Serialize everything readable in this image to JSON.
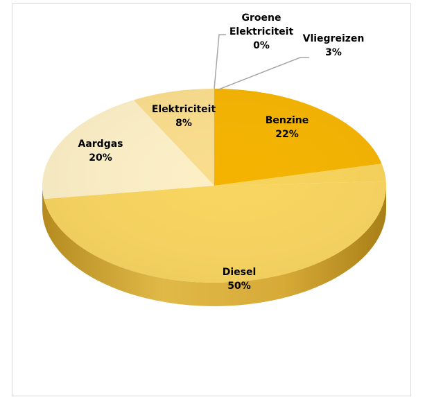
{
  "chart_data": {
    "type": "pie",
    "style": "3d-exploded-free",
    "title": "",
    "start_angle_deg": 0,
    "direction": "clockwise",
    "slices": [
      {
        "label": [
          "Benzine"
        ],
        "value": 22,
        "value_label": "22%",
        "color": "#f4b300"
      },
      {
        "label": [
          "Vliegreizen"
        ],
        "value": 3,
        "value_label": "3%",
        "color": "#f7d35a"
      },
      {
        "label": [
          "Diesel"
        ],
        "value": 50,
        "value_label": "50%",
        "color": "#f8d45f"
      },
      {
        "label": [
          "Aardgas"
        ],
        "value": 20,
        "value_label": "20%",
        "color": "#fcefc6"
      },
      {
        "label": [
          "Elektriciteit"
        ],
        "value": 8,
        "value_label": "8%",
        "color": "#f9dc8c"
      },
      {
        "label": [
          "Groene",
          "Elektriciteit"
        ],
        "value": 0,
        "value_label": "0%",
        "color": "#fdf3d3"
      }
    ],
    "legend": "none",
    "side_color": "#cfa636"
  }
}
